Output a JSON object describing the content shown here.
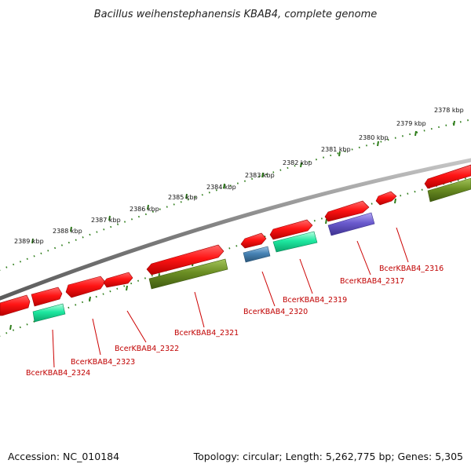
{
  "title": "Bacillus weihenstephanensis KBAB4, complete genome",
  "footer": {
    "accession": "Accession: NC_010184",
    "summary": "Topology: circular; Length: 5,262,775 bp; Genes: 5,305"
  },
  "colors": {
    "backbone": "#7f7f7f",
    "tick": "#2e7d1a",
    "cds_red": "#ff1a1a",
    "cds_olive": "#6b8e23",
    "cds_spring": "#1ee8a0",
    "cds_steel": "#4682b4",
    "cds_slate": "#6a5acd",
    "label": "#c00000"
  },
  "kbp_labels": [
    "2378 kbp",
    "2379 kbp",
    "2380 kbp",
    "2381 kbp",
    "2382 kbp",
    "2383 kbp",
    "2384 kbp",
    "2385 kbp",
    "2386 kbp",
    "2387 kbp",
    "2388 kbp",
    "2389 kbp"
  ],
  "gene_labels": [
    "BcerKBAB4_2316",
    "BcerKBAB4_2317",
    "BcerKBAB4_2319",
    "BcerKBAB4_2320",
    "BcerKBAB4_2321",
    "BcerKBAB4_2322",
    "BcerKBAB4_2323",
    "BcerKBAB4_2324"
  ]
}
